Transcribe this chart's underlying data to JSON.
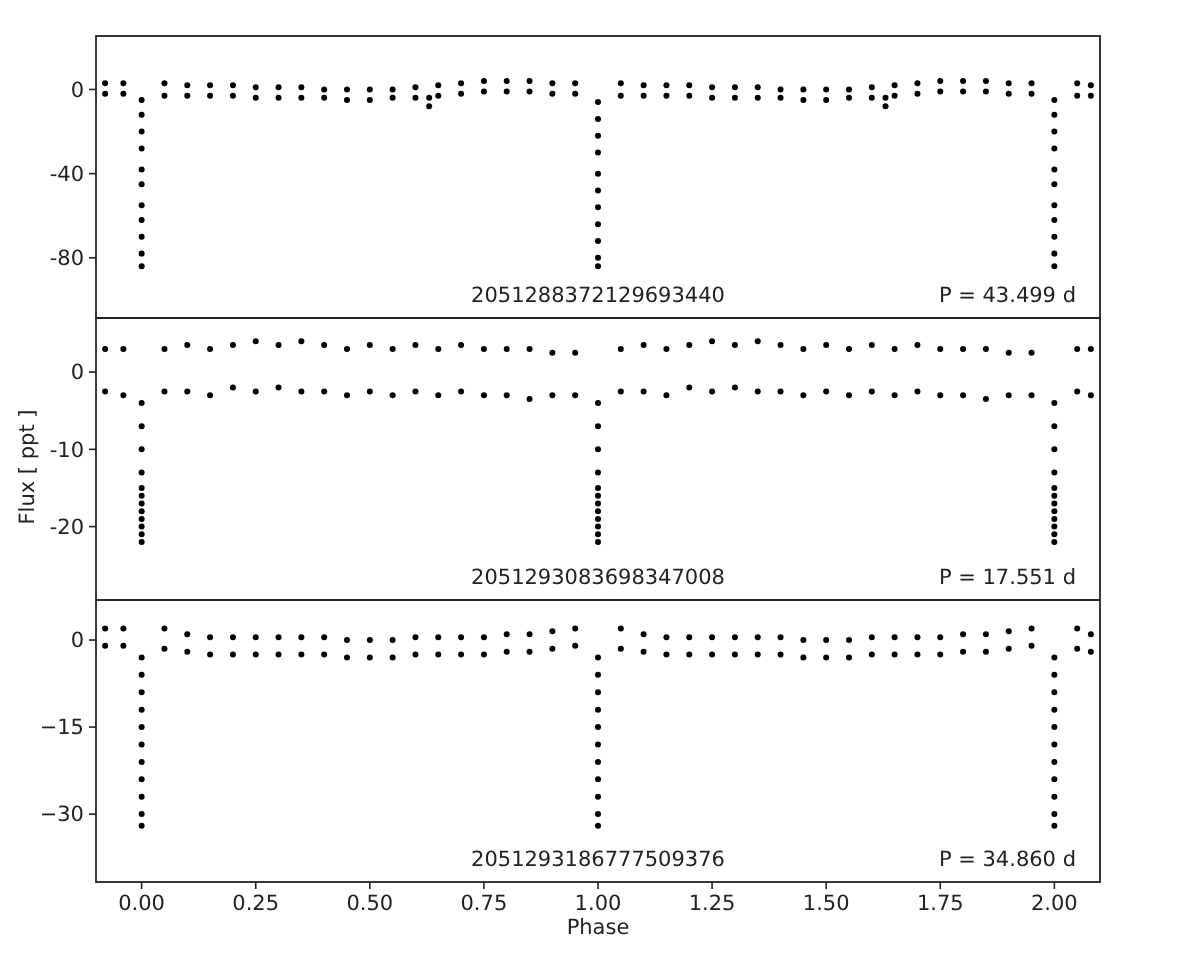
{
  "chart_data": [
    {
      "type": "scatter",
      "color": "#000000",
      "marker": "circle",
      "xlim": [
        -0.1,
        2.1
      ],
      "ylim": [
        -108.6,
        25.4
      ],
      "yticks": [
        0,
        -40,
        -80
      ],
      "tick_labels": "y",
      "annotations": [
        "2051288372129693440",
        "P = 43.499 d"
      ],
      "x": [
        -0.08,
        -0.08,
        -0.04,
        -0.04,
        0,
        0,
        0,
        0,
        0,
        0,
        0,
        0,
        0,
        0,
        0,
        0.05,
        0.05,
        0.1,
        0.1,
        0.15,
        0.15,
        0.2,
        0.2,
        0.25,
        0.25,
        0.3,
        0.3,
        0.35,
        0.35,
        0.4,
        0.4,
        0.45,
        0.45,
        0.5,
        0.5,
        0.55,
        0.55,
        0.6,
        0.6,
        0.63,
        0.63,
        0.65,
        0.65,
        0.7,
        0.7,
        0.75,
        0.75,
        0.8,
        0.8,
        0.85,
        0.85,
        0.9,
        0.9,
        0.95,
        0.95,
        1,
        1,
        1,
        1,
        1,
        1,
        1,
        1,
        1,
        1,
        1,
        1.05,
        1.05,
        1.1,
        1.1,
        1.15,
        1.15,
        1.2,
        1.2,
        1.25,
        1.25,
        1.3,
        1.3,
        1.35,
        1.35,
        1.4,
        1.4,
        1.45,
        1.45,
        1.5,
        1.5,
        1.55,
        1.55,
        1.6,
        1.6,
        1.63,
        1.63,
        1.65,
        1.65,
        1.7,
        1.7,
        1.75,
        1.75,
        1.8,
        1.8,
        1.85,
        1.85,
        1.9,
        1.9,
        1.95,
        1.95,
        2,
        2,
        2,
        2,
        2,
        2,
        2,
        2,
        2,
        2,
        2,
        2.05,
        2.05,
        2.08,
        2.08
      ],
      "values": [
        3,
        -2,
        3,
        -2,
        -5,
        -12,
        -20,
        -28,
        -38,
        -45,
        -55,
        -62,
        -70,
        -78,
        -84,
        3,
        -3,
        2,
        -3,
        2,
        -3,
        2,
        -3,
        1,
        -4,
        1,
        -4,
        1,
        -4,
        0,
        -4,
        0,
        -5,
        0,
        -5,
        0,
        -4,
        1,
        -4,
        -4,
        -8,
        2,
        -3,
        3,
        -2,
        4,
        -1,
        4,
        -1,
        4,
        -1,
        3,
        -2,
        3,
        -2,
        -6,
        -14,
        -22,
        -30,
        -40,
        -48,
        -56,
        -64,
        -72,
        -80,
        -84,
        3,
        -3,
        2,
        -3,
        2,
        -3,
        2,
        -3,
        1,
        -4,
        1,
        -4,
        1,
        -4,
        0,
        -4,
        0,
        -5,
        0,
        -5,
        0,
        -4,
        1,
        -4,
        -4,
        -8,
        2,
        -3,
        3,
        -2,
        4,
        -1,
        4,
        -1,
        4,
        -1,
        3,
        -2,
        3,
        -2,
        -5,
        -12,
        -20,
        -28,
        -38,
        -45,
        -55,
        -62,
        -70,
        -78,
        -84,
        3,
        -3,
        2,
        -3
      ]
    },
    {
      "type": "scatter",
      "color": "#000000",
      "marker": "circle",
      "xlim": [
        -0.1,
        2.1
      ],
      "ylim": [
        -29.5,
        7
      ],
      "yticks": [
        0,
        -10,
        -20
      ],
      "tick_labels": "y",
      "ylabel": "Flux [ ppt ]",
      "annotations": [
        "2051293083698347008",
        "P = 17.551 d"
      ],
      "x": [
        -0.08,
        -0.08,
        -0.04,
        -0.04,
        0,
        0,
        0,
        0,
        0,
        0,
        0,
        0,
        0,
        0,
        0,
        0,
        0.05,
        0.05,
        0.1,
        0.1,
        0.15,
        0.15,
        0.2,
        0.2,
        0.25,
        0.25,
        0.3,
        0.3,
        0.35,
        0.35,
        0.4,
        0.4,
        0.45,
        0.45,
        0.5,
        0.5,
        0.55,
        0.55,
        0.6,
        0.6,
        0.65,
        0.65,
        0.7,
        0.7,
        0.75,
        0.75,
        0.8,
        0.8,
        0.85,
        0.85,
        0.9,
        0.9,
        0.95,
        0.95,
        1,
        1,
        1,
        1,
        1,
        1,
        1,
        1,
        1,
        1,
        1,
        1,
        1.05,
        1.05,
        1.1,
        1.1,
        1.15,
        1.15,
        1.2,
        1.2,
        1.25,
        1.25,
        1.3,
        1.3,
        1.35,
        1.35,
        1.4,
        1.4,
        1.45,
        1.45,
        1.5,
        1.5,
        1.55,
        1.55,
        1.6,
        1.6,
        1.65,
        1.65,
        1.7,
        1.7,
        1.75,
        1.75,
        1.8,
        1.8,
        1.85,
        1.85,
        1.9,
        1.9,
        1.95,
        1.95,
        2,
        2,
        2,
        2,
        2,
        2,
        2,
        2,
        2,
        2,
        2,
        2,
        2.05,
        2.05,
        2.08,
        2.08
      ],
      "values": [
        3,
        -2.5,
        3,
        -3,
        -4,
        -7,
        -10,
        -13,
        -15,
        -16,
        -17,
        -18,
        -19,
        -20,
        -21,
        -22,
        3,
        -2.5,
        3.5,
        -2.5,
        3,
        -3,
        3.5,
        -2,
        4,
        -2.5,
        3.5,
        -2,
        4,
        -2.5,
        3.5,
        -2.5,
        3,
        -3,
        3.5,
        -2.5,
        3,
        -3,
        3.5,
        -2.5,
        3,
        -3,
        3.5,
        -2.5,
        3,
        -3,
        3,
        -3,
        3,
        -3.5,
        2.5,
        -3,
        2.5,
        -3,
        -4,
        -7,
        -10,
        -13,
        -15,
        -16,
        -17,
        -18,
        -19,
        -20,
        -21,
        -22,
        3,
        -2.5,
        3.5,
        -2.5,
        3,
        -3,
        3.5,
        -2,
        4,
        -2.5,
        3.5,
        -2,
        4,
        -2.5,
        3.5,
        -2.5,
        3,
        -3,
        3.5,
        -2.5,
        3,
        -3,
        3.5,
        -2.5,
        3,
        -3,
        3.5,
        -2.5,
        3,
        -3,
        3,
        -3,
        3,
        -3.5,
        2.5,
        -3,
        2.5,
        -3,
        -4,
        -7,
        -10,
        -13,
        -15,
        -16,
        -17,
        -18,
        -19,
        -20,
        -21,
        -22,
        3,
        -2.5,
        3,
        -3
      ]
    },
    {
      "type": "scatter",
      "color": "#000000",
      "marker": "circle",
      "xlim": [
        -0.1,
        2.1
      ],
      "ylim": [
        -41.7,
        6.9
      ],
      "yticks": [
        0,
        {
          "value": -15,
          "label": "−15"
        },
        {
          "value": -30,
          "label": "−30"
        }
      ],
      "xticks": [
        {
          "value": 0,
          "label": "0.00"
        },
        0.25,
        {
          "value": 0.5,
          "label": "0.50"
        },
        0.75,
        {
          "value": 1,
          "label": "1.00"
        },
        1.25,
        {
          "value": 1.5,
          "label": "1.50"
        },
        1.75,
        {
          "value": 2,
          "label": "2.00"
        }
      ],
      "xlabel": "Phase",
      "annotations": [
        "2051293186777509376",
        "P = 34.860 d"
      ],
      "x": [
        -0.08,
        -0.08,
        -0.04,
        -0.04,
        0,
        0,
        0,
        0,
        0,
        0,
        0,
        0,
        0,
        0,
        0,
        0.05,
        0.05,
        0.1,
        0.1,
        0.15,
        0.15,
        0.2,
        0.2,
        0.25,
        0.25,
        0.3,
        0.3,
        0.35,
        0.35,
        0.4,
        0.4,
        0.45,
        0.45,
        0.5,
        0.5,
        0.55,
        0.55,
        0.6,
        0.6,
        0.65,
        0.65,
        0.7,
        0.7,
        0.75,
        0.75,
        0.8,
        0.8,
        0.85,
        0.85,
        0.9,
        0.9,
        0.95,
        0.95,
        1,
        1,
        1,
        1,
        1,
        1,
        1,
        1,
        1,
        1,
        1,
        1.05,
        1.05,
        1.1,
        1.1,
        1.15,
        1.15,
        1.2,
        1.2,
        1.25,
        1.25,
        1.3,
        1.3,
        1.35,
        1.35,
        1.4,
        1.4,
        1.45,
        1.45,
        1.5,
        1.5,
        1.55,
        1.55,
        1.6,
        1.6,
        1.65,
        1.65,
        1.7,
        1.7,
        1.75,
        1.75,
        1.8,
        1.8,
        1.85,
        1.85,
        1.9,
        1.9,
        1.95,
        1.95,
        2,
        2,
        2,
        2,
        2,
        2,
        2,
        2,
        2,
        2,
        2,
        2.05,
        2.05,
        2.08,
        2.08
      ],
      "values": [
        2,
        -1,
        2,
        -1,
        -3,
        -6,
        -9,
        -12,
        -15,
        -18,
        -21,
        -24,
        -27,
        -30,
        -32,
        2,
        -1.5,
        1,
        -2,
        0.5,
        -2.5,
        0.5,
        -2.5,
        0.5,
        -2.5,
        0.5,
        -2.5,
        0.5,
        -2.5,
        0.5,
        -2.5,
        0,
        -3,
        0,
        -3,
        0,
        -3,
        0.5,
        -2.5,
        0.5,
        -2.5,
        0.5,
        -2.5,
        0.5,
        -2.5,
        1,
        -2,
        1,
        -2,
        1.5,
        -1.5,
        2,
        -1,
        -3,
        -6,
        -9,
        -12,
        -15,
        -18,
        -21,
        -24,
        -27,
        -30,
        -32,
        2,
        -1.5,
        1,
        -2,
        0.5,
        -2.5,
        0.5,
        -2.5,
        0.5,
        -2.5,
        0.5,
        -2.5,
        0.5,
        -2.5,
        0.5,
        -2.5,
        0,
        -3,
        0,
        -3,
        0,
        -3,
        0.5,
        -2.5,
        0.5,
        -2.5,
        0.5,
        -2.5,
        0.5,
        -2.5,
        1,
        -2,
        1,
        -2,
        1.5,
        -1.5,
        2,
        -1,
        -3,
        -6,
        -9,
        -12,
        -15,
        -18,
        -21,
        -24,
        -27,
        -30,
        -32,
        2,
        -1.5,
        1,
        -2
      ]
    }
  ]
}
